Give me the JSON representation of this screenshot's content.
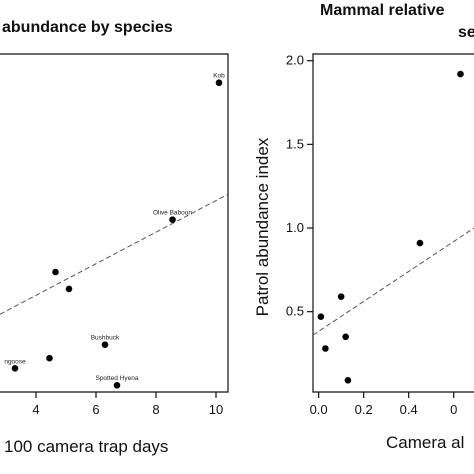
{
  "chart_data": [
    {
      "type": "scatter",
      "title": "abundance by species",
      "xlabel": "100 camera trap days",
      "ylabel": "",
      "xlim": [
        2.8,
        10.4
      ],
      "ylim": [
        0,
        10
      ],
      "x_ticks": [
        "4",
        "6",
        "8",
        "10"
      ],
      "grid": false,
      "points": [
        {
          "x": 10.1,
          "y": 9.15,
          "label": "Kob"
        },
        {
          "x": 8.55,
          "y": 5.1,
          "label": "Olive Baboon"
        },
        {
          "x": 4.65,
          "y": 3.55,
          "label": ""
        },
        {
          "x": 5.1,
          "y": 3.05,
          "label": ""
        },
        {
          "x": 6.3,
          "y": 1.4,
          "label": "Bushbuck"
        },
        {
          "x": 4.45,
          "y": 1.0,
          "label": ""
        },
        {
          "x": 6.7,
          "y": 0.2,
          "label": "Spotted Hyena"
        },
        {
          "x": 3.3,
          "y": 0.7,
          "label": "ngoose"
        }
      ],
      "trend": {
        "x": [
          2.8,
          10.4
        ],
        "y": [
          2.3,
          5.85
        ]
      }
    },
    {
      "type": "scatter",
      "title": "Mammal relative",
      "subtitle": "se",
      "xlabel": "Camera al",
      "ylabel": "Patrol abundance index",
      "xlim": [
        -0.025,
        0.69
      ],
      "ylim": [
        0.02,
        2.04
      ],
      "x_ticks": [
        "0.0",
        "0.2",
        "0.4",
        "0"
      ],
      "y_ticks": [
        "0.5",
        "1.0",
        "1.5",
        "2.0"
      ],
      "grid": false,
      "points": [
        {
          "x": 0.63,
          "y": 1.92
        },
        {
          "x": 0.45,
          "y": 0.91
        },
        {
          "x": 0.1,
          "y": 0.59
        },
        {
          "x": 0.01,
          "y": 0.47
        },
        {
          "x": 0.12,
          "y": 0.35
        },
        {
          "x": 0.03,
          "y": 0.28
        },
        {
          "x": 0.13,
          "y": 0.09
        }
      ],
      "trend": {
        "x": [
          -0.025,
          0.69
        ],
        "y": [
          0.36,
          1.0
        ]
      }
    }
  ]
}
